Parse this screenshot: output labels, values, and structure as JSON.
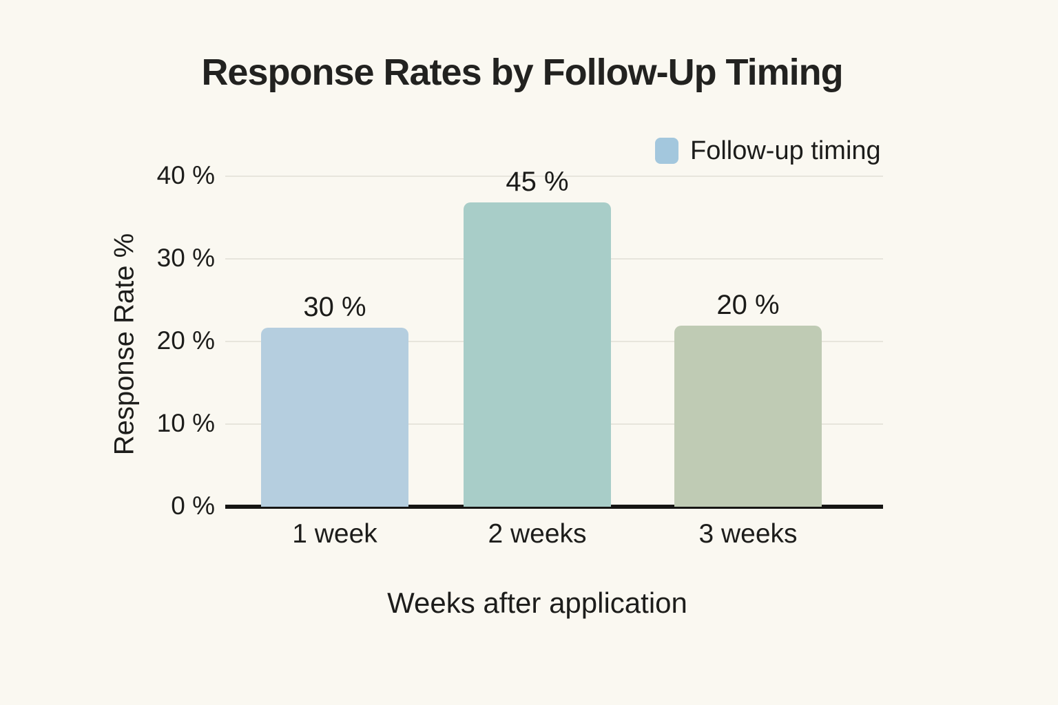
{
  "title": "Response Rates by Follow-Up Timing",
  "legend": {
    "label": "Follow-up timing",
    "swatch_color": "#a3c7dd"
  },
  "chart_data": {
    "type": "bar",
    "title": "Response Rates by Follow-Up Timing",
    "categories": [
      "1 week",
      "2 weeks",
      "3 weeks"
    ],
    "values": [
      30,
      45,
      20
    ],
    "data_labels": [
      "30 %",
      "45 %",
      "20 %"
    ],
    "bar_colors": [
      "#b5cedf",
      "#a8cdc8",
      "#bfcbb4"
    ],
    "bar_drawn_percent": [
      21.7,
      36.8,
      21.9
    ],
    "xlabel": "Weeks after application",
    "ylabel": "Response Rate %",
    "ylim": [
      0,
      40
    ],
    "yticks": [
      {
        "label": "0 %",
        "value": 0
      },
      {
        "label": "10 %",
        "value": 10
      },
      {
        "label": "20 %",
        "value": 20
      },
      {
        "label": "30 %",
        "value": 30
      },
      {
        "label": "40 %",
        "value": 40
      }
    ],
    "grid": true,
    "legend_position": "top-right",
    "background_color": "#faf8f1",
    "grid_color": "#e7e5dc",
    "axis_line_color": "#161614"
  }
}
